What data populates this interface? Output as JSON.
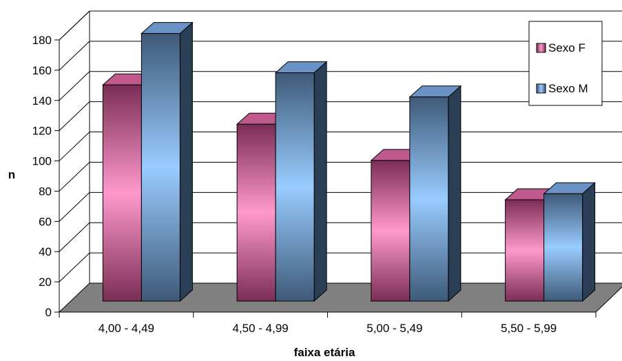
{
  "chart_data": {
    "type": "bar",
    "title": "",
    "xlabel": "faixa etária",
    "ylabel": "n",
    "categories": [
      "4,00 - 4,49",
      "4,50 - 4,99",
      "5,00 - 5,49",
      "5,50 - 5,99"
    ],
    "series": [
      {
        "name": "Sexo F",
        "values": [
          143,
          117,
          93,
          67
        ],
        "color": "#ff99cc"
      },
      {
        "name": "Sexo M",
        "values": [
          177,
          151,
          135,
          71
        ],
        "color": "#99ccff"
      }
    ],
    "ylim": [
      0,
      180
    ],
    "yticks": [
      "0",
      "20",
      "40",
      "60",
      "80",
      "100",
      "120",
      "140",
      "160",
      "180"
    ],
    "grid": true,
    "legend_position": "top-right",
    "style": "3d-bar"
  }
}
